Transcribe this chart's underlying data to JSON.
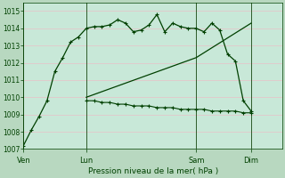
{
  "title": "Pression niveau de la mer( hPa )",
  "background_color": "#b8d8c0",
  "plot_bg_color": "#c8e8d8",
  "grid_color": "#e8c0c8",
  "ylim": [
    1007,
    1015.5
  ],
  "yticks": [
    1007,
    1008,
    1009,
    1010,
    1011,
    1012,
    1013,
    1014,
    1015
  ],
  "day_labels": [
    "Ven",
    "Lun",
    "Sam",
    "Dim"
  ],
  "day_positions": [
    0,
    8,
    22,
    29
  ],
  "xlim": [
    0,
    33
  ],
  "line_color": "#004000",
  "series1_x": [
    0,
    1,
    2,
    3,
    4,
    5,
    6,
    7,
    8,
    9,
    10,
    11,
    12,
    13,
    14,
    15,
    16,
    17,
    18,
    19,
    20,
    21,
    22,
    23,
    24,
    25,
    26,
    27,
    28,
    29
  ],
  "series1_y": [
    1007.2,
    1008.1,
    1008.9,
    1009.8,
    1011.5,
    1012.3,
    1013.2,
    1013.5,
    1014.0,
    1014.1,
    1014.1,
    1014.2,
    1014.5,
    1014.3,
    1013.8,
    1013.9,
    1014.2,
    1014.8,
    1013.8,
    1014.3,
    1014.1,
    1014.0,
    1014.0,
    1013.8,
    1014.3,
    1013.9,
    1012.5,
    1012.1,
    1009.8,
    1009.2
  ],
  "series2_x": [
    8,
    9,
    10,
    11,
    12,
    13,
    14,
    15,
    16,
    17,
    18,
    19,
    20,
    21,
    22,
    23,
    24,
    25,
    26,
    27,
    28,
    29
  ],
  "series2_y": [
    1009.8,
    1009.8,
    1009.7,
    1009.7,
    1009.6,
    1009.6,
    1009.5,
    1009.5,
    1009.5,
    1009.4,
    1009.4,
    1009.4,
    1009.3,
    1009.3,
    1009.3,
    1009.3,
    1009.2,
    1009.2,
    1009.2,
    1009.2,
    1009.1,
    1009.1
  ],
  "series3_x": [
    8,
    22,
    29
  ],
  "series3_y": [
    1010.0,
    1012.3,
    1014.3
  ]
}
